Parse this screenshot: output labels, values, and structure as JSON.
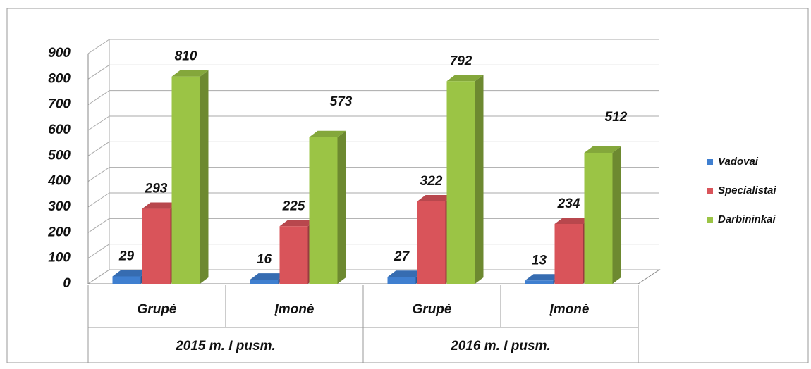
{
  "chart_data": {
    "type": "bar3d",
    "categories": [
      "Grupė",
      "Įmonė",
      "Grupė",
      "Įmonė"
    ],
    "groups": [
      "2015 m. I pusm.",
      "2016 m. I pusm."
    ],
    "series": [
      {
        "name": "Vadovai",
        "color": "#3f7fd0",
        "values": [
          29,
          16,
          27,
          13
        ]
      },
      {
        "name": "Specialistai",
        "color": "#d9545a",
        "values": [
          293,
          225,
          322,
          234
        ]
      },
      {
        "name": "Darbininkai",
        "color": "#9bc445",
        "values": [
          810,
          573,
          792,
          512
        ]
      }
    ],
    "ylim": [
      0,
      900
    ],
    "yticks": [
      0,
      100,
      200,
      300,
      400,
      500,
      600,
      700,
      800,
      900
    ],
    "grid": true,
    "legend": "right"
  }
}
